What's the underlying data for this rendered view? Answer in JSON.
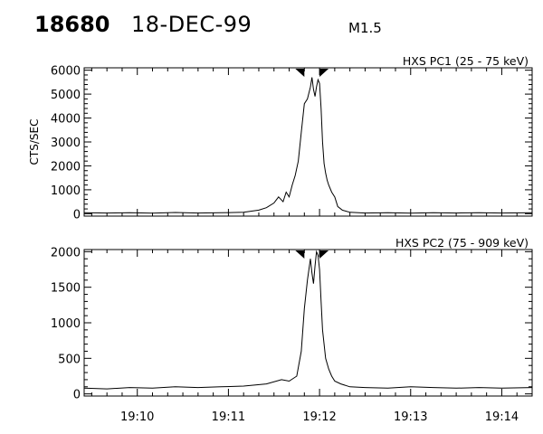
{
  "header": {
    "event_number": "18680",
    "date": "18-DEC-99",
    "flare_class": "M1.5"
  },
  "chart_data": [
    {
      "type": "line",
      "title": "HXS PC1 (25 - 75 keV)",
      "ylabel": "CTS/SEC",
      "xlabel": "",
      "xlim": [
        "19:09:25",
        "19:14:20"
      ],
      "ylim": [
        -100,
        6100
      ],
      "yticks": [
        0,
        1000,
        2000,
        3000,
        4000,
        5000,
        6000
      ],
      "ytick_labels": [
        "0",
        "1000",
        "2000",
        "3000",
        "4000",
        "5000",
        "6000"
      ],
      "markers": [
        "19:11:50",
        "19:12:00"
      ],
      "series": [
        {
          "x": [
            "19:09:25",
            "19:09:40",
            "19:09:55",
            "19:10:10",
            "19:10:25",
            "19:10:40",
            "19:10:55",
            "19:11:10",
            "19:11:20",
            "19:11:25",
            "19:11:30",
            "19:11:33",
            "19:11:36",
            "19:11:38",
            "19:11:40",
            "19:11:42",
            "19:11:44",
            "19:11:46",
            "19:11:48",
            "19:11:50",
            "19:11:52",
            "19:11:54",
            "19:11:55",
            "19:11:56",
            "19:11:57",
            "19:11:58",
            "19:11:59",
            "19:12:00",
            "19:12:01",
            "19:12:02",
            "19:12:03",
            "19:12:04",
            "19:12:05",
            "19:12:06",
            "19:12:08",
            "19:12:10",
            "19:12:12",
            "19:12:15",
            "19:12:20",
            "19:12:30",
            "19:12:45",
            "19:13:00",
            "19:13:15",
            "19:13:30",
            "19:13:45",
            "19:14:00",
            "19:14:20"
          ],
          "y": [
            40,
            30,
            40,
            20,
            50,
            30,
            40,
            60,
            150,
            250,
            450,
            700,
            500,
            900,
            700,
            1200,
            1600,
            2200,
            3400,
            4600,
            4800,
            5300,
            5700,
            5200,
            4900,
            5300,
            5600,
            5450,
            4400,
            3000,
            2100,
            1700,
            1400,
            1200,
            900,
            700,
            300,
            150,
            60,
            30,
            40,
            20,
            40,
            30,
            40,
            30,
            40
          ]
        }
      ]
    },
    {
      "type": "line",
      "title": "HXS PC2 (75 - 909 keV)",
      "ylabel": "",
      "xlabel": "",
      "xlim": [
        "19:09:25",
        "19:14:20"
      ],
      "ylim": [
        -30,
        2030
      ],
      "yticks": [
        0,
        500,
        1000,
        1500,
        2000
      ],
      "ytick_labels": [
        "0",
        "500",
        "1000",
        "1500",
        "2000"
      ],
      "xticks": [
        "19:10:00",
        "19:11:00",
        "19:12:00",
        "19:13:00",
        "19:14:00"
      ],
      "xtick_labels": [
        "19:10",
        "19:11",
        "19:12",
        "19:13",
        "19:14"
      ],
      "markers": [
        "19:11:50",
        "19:12:00"
      ],
      "series": [
        {
          "x": [
            "19:09:25",
            "19:09:40",
            "19:09:55",
            "19:10:10",
            "19:10:25",
            "19:10:40",
            "19:10:55",
            "19:11:10",
            "19:11:25",
            "19:11:35",
            "19:11:40",
            "19:11:45",
            "19:11:48",
            "19:11:50",
            "19:11:52",
            "19:11:54",
            "19:11:55",
            "19:11:56",
            "19:11:57",
            "19:11:58",
            "19:11:59",
            "19:12:00",
            "19:12:01",
            "19:12:02",
            "19:12:03",
            "19:12:04",
            "19:12:06",
            "19:12:08",
            "19:12:10",
            "19:12:14",
            "19:12:20",
            "19:12:30",
            "19:12:45",
            "19:13:00",
            "19:13:15",
            "19:13:30",
            "19:13:45",
            "19:14:00",
            "19:14:20"
          ],
          "y": [
            80,
            70,
            90,
            80,
            100,
            90,
            100,
            110,
            140,
            200,
            180,
            250,
            600,
            1200,
            1600,
            1900,
            1700,
            1550,
            1800,
            2000,
            1950,
            1750,
            1300,
            900,
            700,
            500,
            350,
            250,
            180,
            140,
            100,
            90,
            80,
            100,
            90,
            80,
            90,
            80,
            90
          ]
        }
      ]
    }
  ]
}
